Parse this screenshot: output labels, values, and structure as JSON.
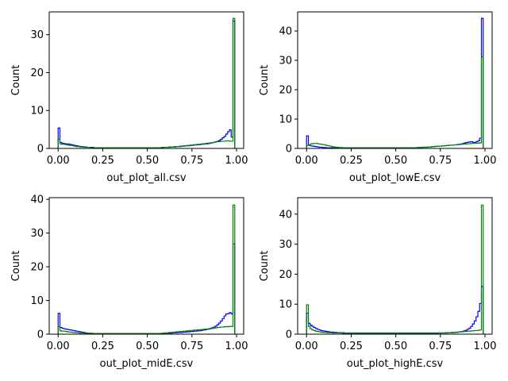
{
  "chart_data": [
    {
      "type": "histogram",
      "xlabel": "out_plot_all.csv",
      "ylabel": "Count",
      "xlim": [
        -0.05,
        1.04
      ],
      "ylim": [
        0,
        36
      ],
      "xticks": [
        0.0,
        0.25,
        0.5,
        0.75,
        1.0
      ],
      "xtick_labels": [
        "0.00",
        "0.25",
        "0.50",
        "0.75",
        "1.00"
      ],
      "yticks": [
        0,
        10,
        20,
        30
      ],
      "ytick_labels": [
        "0",
        "10",
        "20",
        "30"
      ],
      "grid": false,
      "legend": false,
      "bin_width": 0.01,
      "series": [
        {
          "color": "#0000ff",
          "values": [
            5.4,
            1.6,
            1.4,
            1.3,
            1.2,
            1.2,
            1.1,
            1.0,
            0.9,
            0.8,
            0.7,
            0.6,
            0.5,
            0.5,
            0.4,
            0.4,
            0.3,
            0.3,
            0.3,
            0.3,
            0.2,
            0.2,
            0.2,
            0.2,
            0.2,
            0.2,
            0.2,
            0.2,
            0.2,
            0.2,
            0.2,
            0.2,
            0.2,
            0.2,
            0.2,
            0.2,
            0.2,
            0.2,
            0.2,
            0.2,
            0.2,
            0.2,
            0.2,
            0.2,
            0.2,
            0.2,
            0.2,
            0.2,
            0.2,
            0.2,
            0.2,
            0.2,
            0.2,
            0.2,
            0.2,
            0.2,
            0.2,
            0.2,
            0.2,
            0.3,
            0.3,
            0.3,
            0.3,
            0.4,
            0.4,
            0.4,
            0.5,
            0.5,
            0.5,
            0.6,
            0.6,
            0.7,
            0.7,
            0.7,
            0.8,
            0.8,
            0.9,
            0.9,
            1.0,
            1.0,
            1.1,
            1.1,
            1.2,
            1.2,
            1.3,
            1.4,
            1.5,
            1.6,
            1.7,
            1.9,
            2.1,
            2.4,
            2.8,
            3.2,
            3.8,
            4.4,
            4.9,
            3.0,
            33.6
          ]
        },
        {
          "color": "#008000",
          "values": [
            2.4,
            1.2,
            1.1,
            1.1,
            1.0,
            0.9,
            0.8,
            0.8,
            0.7,
            0.6,
            0.5,
            0.5,
            0.4,
            0.4,
            0.3,
            0.3,
            0.3,
            0.3,
            0.2,
            0.2,
            0.2,
            0.2,
            0.2,
            0.2,
            0.2,
            0.2,
            0.2,
            0.2,
            0.2,
            0.2,
            0.2,
            0.2,
            0.2,
            0.2,
            0.2,
            0.2,
            0.2,
            0.2,
            0.2,
            0.2,
            0.2,
            0.2,
            0.2,
            0.2,
            0.2,
            0.2,
            0.2,
            0.2,
            0.2,
            0.2,
            0.2,
            0.2,
            0.2,
            0.2,
            0.2,
            0.2,
            0.2,
            0.2,
            0.3,
            0.3,
            0.3,
            0.3,
            0.4,
            0.4,
            0.4,
            0.5,
            0.5,
            0.5,
            0.6,
            0.6,
            0.7,
            0.7,
            0.8,
            0.8,
            0.9,
            0.9,
            1.0,
            1.0,
            1.1,
            1.1,
            1.2,
            1.2,
            1.3,
            1.4,
            1.4,
            1.5,
            1.5,
            1.6,
            1.7,
            1.8,
            1.8,
            1.9,
            1.9,
            1.9,
            2.0,
            2.0,
            1.9,
            1.9,
            34.3
          ]
        }
      ]
    },
    {
      "type": "histogram",
      "xlabel": "out_plot_lowE.csv",
      "ylabel": "Count",
      "xlim": [
        -0.05,
        1.04
      ],
      "ylim": [
        0,
        46.5
      ],
      "xticks": [
        0.0,
        0.25,
        0.5,
        0.75,
        1.0
      ],
      "xtick_labels": [
        "0.00",
        "0.25",
        "0.50",
        "0.75",
        "1.00"
      ],
      "yticks": [
        0,
        10,
        20,
        30,
        40
      ],
      "ytick_labels": [
        "0",
        "10",
        "20",
        "30",
        "40"
      ],
      "grid": false,
      "legend": false,
      "bin_width": 0.01,
      "series": [
        {
          "color": "#0000ff",
          "values": [
            4.3,
            1.1,
            0.9,
            0.8,
            0.7,
            0.6,
            0.5,
            0.4,
            0.4,
            0.3,
            0.3,
            0.2,
            0.2,
            0.2,
            0.2,
            0.2,
            0.2,
            0.2,
            0.2,
            0.2,
            0.2,
            0.2,
            0.2,
            0.2,
            0.2,
            0.2,
            0.2,
            0.2,
            0.2,
            0.2,
            0.2,
            0.2,
            0.2,
            0.2,
            0.2,
            0.2,
            0.2,
            0.2,
            0.2,
            0.2,
            0.2,
            0.2,
            0.2,
            0.2,
            0.2,
            0.2,
            0.2,
            0.2,
            0.2,
            0.2,
            0.2,
            0.2,
            0.2,
            0.2,
            0.2,
            0.2,
            0.2,
            0.2,
            0.2,
            0.2,
            0.2,
            0.2,
            0.3,
            0.3,
            0.3,
            0.4,
            0.4,
            0.4,
            0.5,
            0.5,
            0.6,
            0.6,
            0.7,
            0.7,
            0.8,
            0.8,
            0.9,
            0.9,
            1.0,
            1.0,
            1.1,
            1.1,
            1.2,
            1.2,
            1.3,
            1.4,
            1.5,
            1.6,
            1.8,
            2.0,
            2.1,
            2.2,
            2.3,
            2.1,
            2.0,
            2.3,
            2.6,
            3.5,
            44.3
          ]
        },
        {
          "color": "#008000",
          "values": [
            1.0,
            1.2,
            1.5,
            1.6,
            1.7,
            1.7,
            1.6,
            1.5,
            1.4,
            1.3,
            1.2,
            1.0,
            0.9,
            0.8,
            0.6,
            0.5,
            0.4,
            0.4,
            0.3,
            0.3,
            0.2,
            0.2,
            0.2,
            0.2,
            0.2,
            0.2,
            0.2,
            0.2,
            0.2,
            0.2,
            0.2,
            0.2,
            0.2,
            0.2,
            0.2,
            0.2,
            0.2,
            0.2,
            0.2,
            0.2,
            0.2,
            0.2,
            0.2,
            0.2,
            0.2,
            0.2,
            0.2,
            0.2,
            0.2,
            0.2,
            0.2,
            0.2,
            0.2,
            0.2,
            0.2,
            0.2,
            0.2,
            0.2,
            0.2,
            0.2,
            0.2,
            0.2,
            0.3,
            0.3,
            0.3,
            0.4,
            0.4,
            0.4,
            0.5,
            0.5,
            0.6,
            0.6,
            0.7,
            0.7,
            0.8,
            0.8,
            0.9,
            0.9,
            1.0,
            1.0,
            1.1,
            1.1,
            1.2,
            1.2,
            1.3,
            1.3,
            1.4,
            1.4,
            1.5,
            1.5,
            1.6,
            1.6,
            1.7,
            1.7,
            1.8,
            1.8,
            1.8,
            1.9,
            31.2
          ]
        }
      ]
    },
    {
      "type": "histogram",
      "xlabel": "out_plot_midE.csv",
      "ylabel": "Count",
      "xlim": [
        -0.05,
        1.04
      ],
      "ylim": [
        0,
        40.5
      ],
      "xticks": [
        0.0,
        0.25,
        0.5,
        0.75,
        1.0
      ],
      "xtick_labels": [
        "0.00",
        "0.25",
        "0.50",
        "0.75",
        "1.00"
      ],
      "yticks": [
        0,
        10,
        20,
        30,
        40
      ],
      "ytick_labels": [
        "0",
        "10",
        "20",
        "30",
        "40"
      ],
      "grid": false,
      "legend": false,
      "bin_width": 0.01,
      "series": [
        {
          "color": "#0000ff",
          "values": [
            6.2,
            2.0,
            1.8,
            1.6,
            1.5,
            1.4,
            1.3,
            1.2,
            1.1,
            1.0,
            0.9,
            0.8,
            0.7,
            0.6,
            0.5,
            0.4,
            0.3,
            0.3,
            0.3,
            0.2,
            0.2,
            0.2,
            0.2,
            0.2,
            0.2,
            0.2,
            0.2,
            0.2,
            0.2,
            0.2,
            0.2,
            0.2,
            0.2,
            0.2,
            0.2,
            0.2,
            0.2,
            0.2,
            0.2,
            0.2,
            0.2,
            0.2,
            0.2,
            0.2,
            0.2,
            0.2,
            0.2,
            0.2,
            0.2,
            0.2,
            0.2,
            0.2,
            0.2,
            0.2,
            0.2,
            0.2,
            0.2,
            0.2,
            0.2,
            0.3,
            0.3,
            0.3,
            0.3,
            0.3,
            0.4,
            0.4,
            0.4,
            0.5,
            0.5,
            0.5,
            0.6,
            0.6,
            0.7,
            0.7,
            0.8,
            0.8,
            0.9,
            0.9,
            1.0,
            1.0,
            1.1,
            1.2,
            1.3,
            1.4,
            1.5,
            1.7,
            1.9,
            2.1,
            2.4,
            2.8,
            3.3,
            3.9,
            4.6,
            5.4,
            6.0,
            6.1,
            6.4,
            6.0,
            26.8
          ]
        },
        {
          "color": "#008000",
          "values": [
            2.2,
            1.0,
            0.9,
            0.9,
            0.8,
            0.7,
            0.6,
            0.6,
            0.5,
            0.5,
            0.4,
            0.4,
            0.3,
            0.3,
            0.3,
            0.2,
            0.2,
            0.2,
            0.2,
            0.2,
            0.2,
            0.2,
            0.2,
            0.2,
            0.2,
            0.2,
            0.2,
            0.2,
            0.2,
            0.2,
            0.2,
            0.2,
            0.2,
            0.2,
            0.2,
            0.2,
            0.2,
            0.2,
            0.2,
            0.2,
            0.2,
            0.2,
            0.2,
            0.2,
            0.2,
            0.2,
            0.2,
            0.2,
            0.2,
            0.2,
            0.2,
            0.2,
            0.2,
            0.2,
            0.2,
            0.2,
            0.2,
            0.2,
            0.3,
            0.3,
            0.4,
            0.4,
            0.5,
            0.5,
            0.6,
            0.6,
            0.7,
            0.7,
            0.8,
            0.8,
            0.9,
            0.9,
            1.0,
            1.0,
            1.1,
            1.1,
            1.2,
            1.2,
            1.3,
            1.3,
            1.4,
            1.4,
            1.5,
            1.5,
            1.6,
            1.6,
            1.7,
            1.8,
            1.9,
            2.0,
            2.0,
            2.1,
            2.1,
            2.2,
            2.2,
            2.2,
            2.3,
            2.3,
            38.3
          ]
        }
      ]
    },
    {
      "type": "histogram",
      "xlabel": "out_plot_highE.csv",
      "ylabel": "Count",
      "xlim": [
        -0.05,
        1.04
      ],
      "ylim": [
        0,
        45.5
      ],
      "xticks": [
        0.0,
        0.25,
        0.5,
        0.75,
        1.0
      ],
      "xtick_labels": [
        "0.00",
        "0.25",
        "0.50",
        "0.75",
        "1.00"
      ],
      "yticks": [
        0,
        10,
        20,
        30,
        40
      ],
      "ytick_labels": [
        "0",
        "10",
        "20",
        "30",
        "40"
      ],
      "grid": false,
      "legend": false,
      "bin_width": 0.01,
      "series": [
        {
          "color": "#0000ff",
          "values": [
            7.0,
            3.6,
            3.0,
            2.6,
            2.2,
            1.9,
            1.6,
            1.4,
            1.2,
            1.1,
            1.0,
            0.9,
            0.8,
            0.7,
            0.7,
            0.6,
            0.6,
            0.5,
            0.5,
            0.5,
            0.5,
            0.4,
            0.4,
            0.4,
            0.4,
            0.4,
            0.4,
            0.4,
            0.4,
            0.4,
            0.4,
            0.4,
            0.4,
            0.4,
            0.4,
            0.4,
            0.4,
            0.4,
            0.4,
            0.4,
            0.4,
            0.4,
            0.4,
            0.4,
            0.4,
            0.4,
            0.4,
            0.4,
            0.4,
            0.4,
            0.4,
            0.4,
            0.4,
            0.4,
            0.4,
            0.4,
            0.4,
            0.4,
            0.4,
            0.4,
            0.4,
            0.4,
            0.4,
            0.4,
            0.4,
            0.4,
            0.4,
            0.4,
            0.4,
            0.4,
            0.4,
            0.4,
            0.4,
            0.4,
            0.4,
            0.4,
            0.4,
            0.4,
            0.4,
            0.5,
            0.5,
            0.5,
            0.5,
            0.6,
            0.6,
            0.7,
            0.8,
            0.9,
            1.1,
            1.3,
            1.6,
            2.0,
            2.6,
            3.4,
            4.4,
            5.8,
            7.6,
            10.2,
            15.9
          ]
        },
        {
          "color": "#008000",
          "values": [
            9.8,
            2.6,
            1.8,
            1.4,
            1.2,
            1.0,
            0.9,
            0.8,
            0.7,
            0.6,
            0.6,
            0.5,
            0.5,
            0.5,
            0.4,
            0.4,
            0.4,
            0.4,
            0.4,
            0.4,
            0.3,
            0.3,
            0.3,
            0.3,
            0.3,
            0.3,
            0.3,
            0.3,
            0.3,
            0.3,
            0.3,
            0.3,
            0.3,
            0.3,
            0.3,
            0.3,
            0.3,
            0.3,
            0.3,
            0.3,
            0.3,
            0.3,
            0.3,
            0.3,
            0.3,
            0.3,
            0.3,
            0.3,
            0.3,
            0.3,
            0.3,
            0.3,
            0.3,
            0.3,
            0.3,
            0.3,
            0.3,
            0.3,
            0.3,
            0.3,
            0.3,
            0.3,
            0.3,
            0.3,
            0.3,
            0.3,
            0.3,
            0.3,
            0.3,
            0.3,
            0.3,
            0.3,
            0.3,
            0.3,
            0.4,
            0.4,
            0.4,
            0.4,
            0.5,
            0.5,
            0.5,
            0.6,
            0.6,
            0.6,
            0.7,
            0.7,
            0.8,
            0.8,
            0.9,
            0.9,
            1.0,
            1.0,
            1.1,
            1.1,
            1.2,
            1.2,
            1.3,
            1.4,
            43.0
          ]
        }
      ]
    }
  ]
}
